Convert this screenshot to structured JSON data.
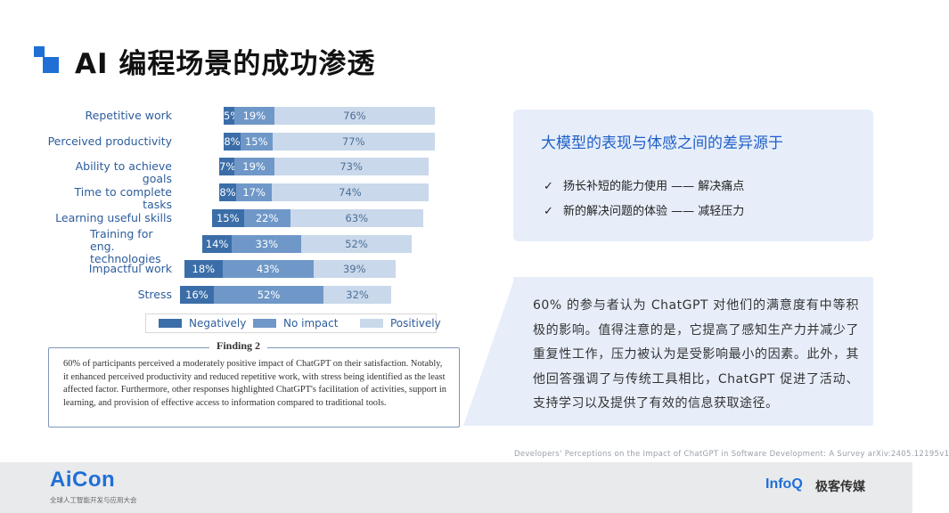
{
  "slide": {
    "title": "AI 编程场景的成功渗透"
  },
  "chart_data": {
    "type": "bar",
    "stacked": true,
    "orientation": "horizontal",
    "categories": [
      "Repetitive work",
      "Perceived productivity",
      "Ability to achieve goals",
      "Time to complete tasks",
      "Learning useful skills",
      "Training for eng. technologies",
      "Impactful work",
      "Stress"
    ],
    "series": [
      {
        "name": "Negatively",
        "values": [
          5,
          8,
          7,
          8,
          15,
          14,
          18,
          16
        ],
        "color": "#3b6ea8"
      },
      {
        "name": "No impact",
        "values": [
          19,
          15,
          19,
          17,
          22,
          33,
          43,
          52
        ],
        "color": "#6f98c8"
      },
      {
        "name": "Positively",
        "values": [
          76,
          77,
          73,
          74,
          63,
          52,
          39,
          32
        ],
        "color": "#c9d8ea"
      }
    ],
    "legend_position": "bottom"
  },
  "finding": {
    "title": "Finding 2",
    "text": "60% of participants perceived a moderately positive impact of ChatGPT on their satisfaction. Notably, it enhanced perceived productivity and reduced repetitive work, with stress being identified as the least affected factor. Furthermore, other responses highlighted ChatGPT's facilitation of activities, support in learning, and provision of effective access to information compared to traditional tools."
  },
  "box_top": {
    "title": "大模型的表现与体感之间的差异源于",
    "items": [
      {
        "check": "✓",
        "text": "扬长补短的能力使用 —— 解决痛点"
      },
      {
        "check": "✓",
        "text": "新的解决问题的体验 —— 减轻压力"
      }
    ]
  },
  "box_bottom": {
    "text": "60% 的参与者认为 ChatGPT 对他们的满意度有中等积极的影响。值得注意的是，它提高了感知生产力并减少了重复性工作，压力被认为是受影响最小的因素。此外，其他回答强调了与传统工具相比，ChatGPT 促进了活动、支持学习以及提供了有效的信息获取途径。"
  },
  "citation": "Developers' Perceptions on the Impact of ChatGPT in Software Development: A Survey arXiv:2405.12195v1",
  "footer": {
    "aicon": "AiCon",
    "aicon_sub": "全球人工智能开发与应用大会",
    "infoq": "InfoQ",
    "geek": "极客传媒"
  },
  "colors": {
    "accent": "#1f6fd6",
    "box_bg": "#e7eefa"
  }
}
